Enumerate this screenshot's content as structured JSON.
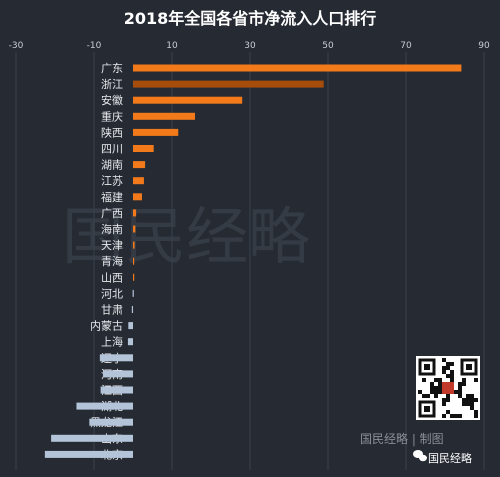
{
  "chart_data": {
    "type": "bar",
    "orientation": "horizontal",
    "title": "2018年全国各省市净流入人口排行",
    "xlim": [
      -30,
      90
    ],
    "xticks": [
      -30,
      -10,
      10,
      30,
      50,
      70,
      90
    ],
    "grid": true,
    "categories": [
      "广东",
      "浙江",
      "安徽",
      "重庆",
      "陕西",
      "四川",
      "湖南",
      "江苏",
      "福建",
      "广西",
      "海南",
      "天津",
      "青海",
      "山西",
      "河北",
      "甘肃",
      "内蒙古",
      "上海",
      "辽宁",
      "河南",
      "江西",
      "湖北",
      "黑龙江",
      "山东",
      "北京"
    ],
    "values": [
      84.2,
      48.9,
      28.0,
      15.9,
      11.6,
      5.3,
      3.1,
      2.8,
      2.3,
      0.8,
      0.6,
      0.4,
      0.2,
      0.1,
      -0.1,
      -0.3,
      -1.2,
      -1.3,
      -8.5,
      -7.7,
      -8.3,
      -14.5,
      -11.2,
      -21.0,
      -22.6
    ],
    "colors": {
      "positive": "#f27a1a",
      "positive_dark": "#a64d0c",
      "negative": "#b4c4d8"
    }
  },
  "watermark": {
    "text": "国民经略"
  },
  "footer": {
    "credit": "国民经略 | 制图",
    "brand": "国民经略"
  }
}
